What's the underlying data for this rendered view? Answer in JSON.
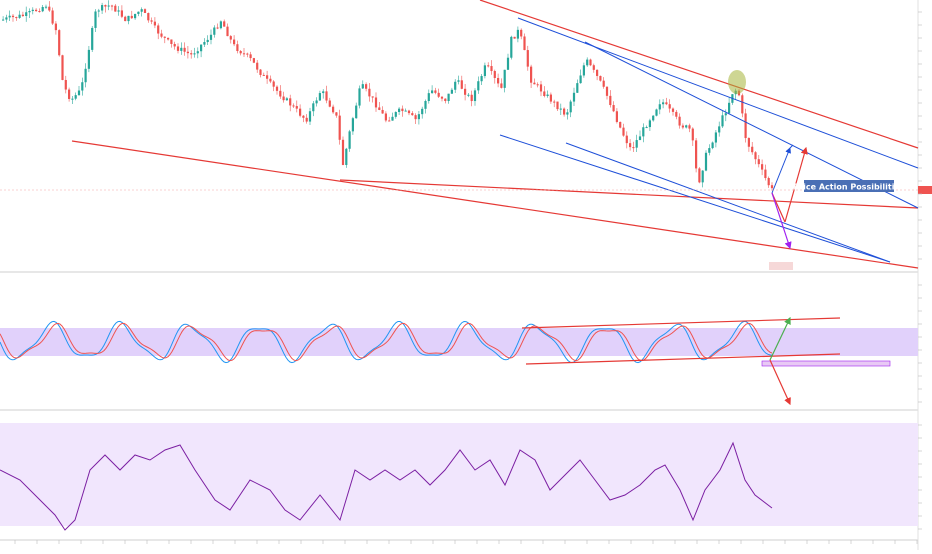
{
  "chart_data": {
    "type": "candlestick",
    "annotation": "Price Action Possibilities",
    "colors": {
      "up": "#26a69a",
      "down": "#ef5350",
      "trendline_red": "#e53935",
      "trendline_blue": "#1e4fd8",
      "stoch_k": "#2196f3",
      "stoch_d": "#ef5350",
      "rsi": "#7b1fa2",
      "band": "#e1d1fb",
      "highlight": "#a6b53a",
      "label_bg": "#4a6fb5",
      "purple_arrow": "#a020f0",
      "green_arrow": "#4caf50"
    },
    "price_panel": {
      "y_range": [
        0,
        270
      ],
      "last_price_marker": true
    },
    "stochastic_panel": {
      "band": "20-80",
      "overbought": 80,
      "oversold": 20
    },
    "rsi_panel": {
      "band": "30-70"
    }
  }
}
